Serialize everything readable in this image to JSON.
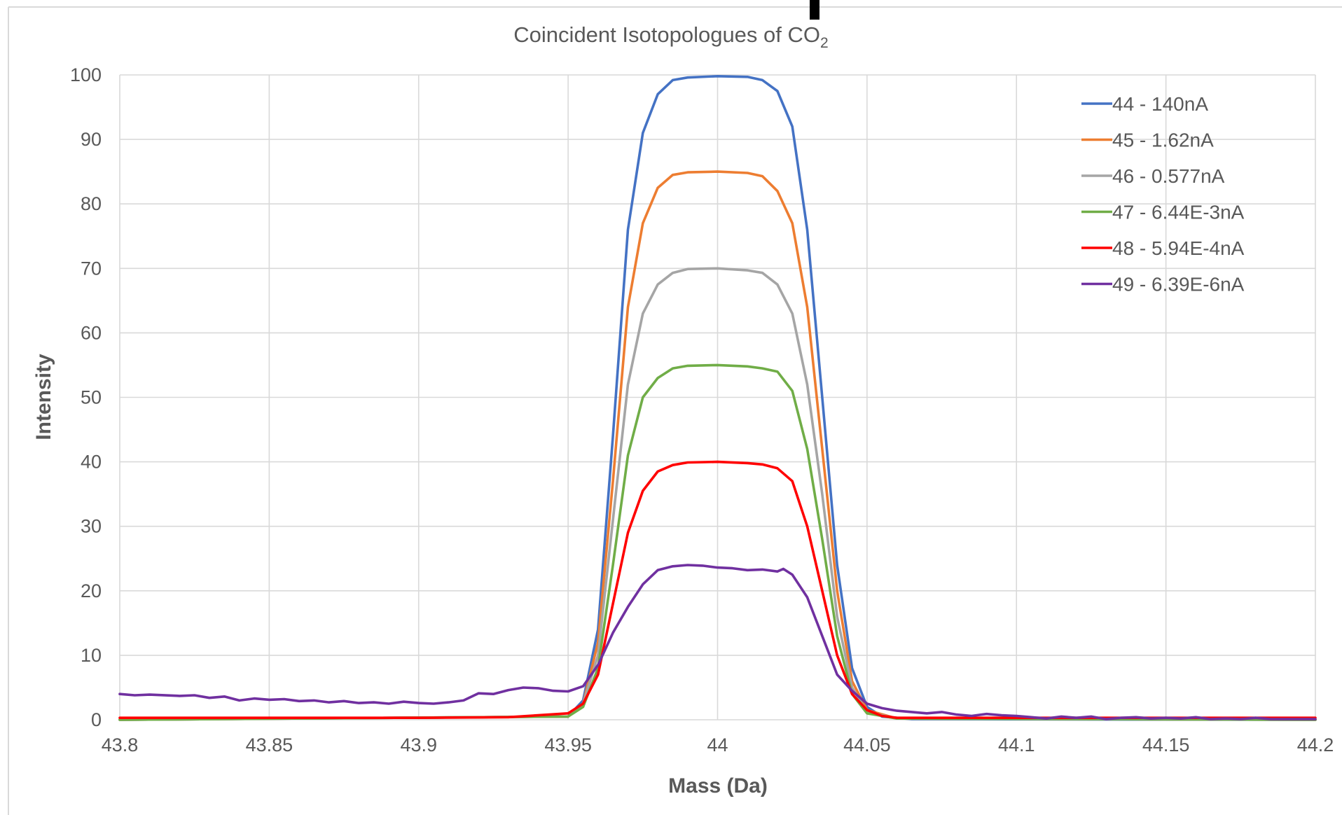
{
  "chart_data": {
    "type": "line",
    "title": "Coincident Isotopologues of CO",
    "title_subscript": "2",
    "xlabel": "Mass (Da)",
    "ylabel": "Intensity",
    "xlim": [
      43.8,
      44.2
    ],
    "ylim": [
      0,
      100
    ],
    "x_ticks": [
      "43.8",
      "43.85",
      "43.9",
      "43.95",
      "44",
      "44.05",
      "44.1",
      "44.15",
      "44.2"
    ],
    "y_ticks": [
      "0",
      "10",
      "20",
      "30",
      "40",
      "50",
      "60",
      "70",
      "80",
      "90",
      "100"
    ],
    "grid": true,
    "legend_position": "top-right",
    "series": [
      {
        "name": "44 - 140nA",
        "color": "#4472C4",
        "points": [
          [
            43.8,
            0
          ],
          [
            43.95,
            0.5
          ],
          [
            43.955,
            3
          ],
          [
            43.96,
            14
          ],
          [
            43.965,
            44
          ],
          [
            43.97,
            76
          ],
          [
            43.975,
            91
          ],
          [
            43.98,
            97
          ],
          [
            43.985,
            99.2
          ],
          [
            43.99,
            99.6
          ],
          [
            44.0,
            99.8
          ],
          [
            44.01,
            99.7
          ],
          [
            44.015,
            99.2
          ],
          [
            44.02,
            97.5
          ],
          [
            44.025,
            92
          ],
          [
            44.03,
            76
          ],
          [
            44.035,
            50
          ],
          [
            44.04,
            24
          ],
          [
            44.045,
            8
          ],
          [
            44.05,
            2
          ],
          [
            44.055,
            0.5
          ],
          [
            44.065,
            0.1
          ],
          [
            44.2,
            0
          ]
        ]
      },
      {
        "name": "45 - 1.62nA",
        "color": "#ED7D31",
        "points": [
          [
            43.8,
            0
          ],
          [
            43.95,
            0.5
          ],
          [
            43.955,
            2.5
          ],
          [
            43.96,
            12
          ],
          [
            43.965,
            37
          ],
          [
            43.97,
            64
          ],
          [
            43.975,
            77
          ],
          [
            43.98,
            82.5
          ],
          [
            43.985,
            84.5
          ],
          [
            43.99,
            84.9
          ],
          [
            44.0,
            85
          ],
          [
            44.01,
            84.8
          ],
          [
            44.015,
            84.3
          ],
          [
            44.02,
            82
          ],
          [
            44.025,
            77
          ],
          [
            44.03,
            64
          ],
          [
            44.035,
            42
          ],
          [
            44.04,
            20
          ],
          [
            44.045,
            6
          ],
          [
            44.05,
            1.5
          ],
          [
            44.06,
            0.2
          ],
          [
            44.2,
            0
          ]
        ]
      },
      {
        "name": "46 - 0.577nA",
        "color": "#A5A5A5",
        "points": [
          [
            43.8,
            0
          ],
          [
            43.95,
            0.5
          ],
          [
            43.955,
            2.5
          ],
          [
            43.96,
            10
          ],
          [
            43.965,
            31
          ],
          [
            43.97,
            52
          ],
          [
            43.975,
            63
          ],
          [
            43.98,
            67.5
          ],
          [
            43.985,
            69.3
          ],
          [
            43.99,
            69.9
          ],
          [
            44.0,
            70
          ],
          [
            44.01,
            69.7
          ],
          [
            44.015,
            69.3
          ],
          [
            44.02,
            67.5
          ],
          [
            44.025,
            63
          ],
          [
            44.03,
            52
          ],
          [
            44.035,
            35
          ],
          [
            44.04,
            16
          ],
          [
            44.045,
            5
          ],
          [
            44.05,
            1.2
          ],
          [
            44.06,
            0.2
          ],
          [
            44.2,
            0
          ]
        ]
      },
      {
        "name": "47 - 6.44E-3nA",
        "color": "#70AD47",
        "points": [
          [
            43.8,
            0
          ],
          [
            43.95,
            0.5
          ],
          [
            43.955,
            2
          ],
          [
            43.96,
            8
          ],
          [
            43.965,
            24
          ],
          [
            43.97,
            41
          ],
          [
            43.975,
            50
          ],
          [
            43.98,
            53
          ],
          [
            43.985,
            54.5
          ],
          [
            43.99,
            54.9
          ],
          [
            44.0,
            55
          ],
          [
            44.01,
            54.8
          ],
          [
            44.015,
            54.5
          ],
          [
            44.02,
            54
          ],
          [
            44.025,
            51
          ],
          [
            44.03,
            42
          ],
          [
            44.035,
            28
          ],
          [
            44.04,
            13
          ],
          [
            44.045,
            4
          ],
          [
            44.05,
            1
          ],
          [
            44.06,
            0.2
          ],
          [
            44.2,
            0
          ]
        ]
      },
      {
        "name": "48 - 5.94E-4nA",
        "color": "#FF0000",
        "points": [
          [
            43.8,
            0.3
          ],
          [
            43.9,
            0.3
          ],
          [
            43.93,
            0.4
          ],
          [
            43.95,
            1
          ],
          [
            43.955,
            2.5
          ],
          [
            43.96,
            7
          ],
          [
            43.965,
            18
          ],
          [
            43.97,
            29
          ],
          [
            43.975,
            35.5
          ],
          [
            43.98,
            38.5
          ],
          [
            43.985,
            39.5
          ],
          [
            43.99,
            39.9
          ],
          [
            44.0,
            40
          ],
          [
            44.01,
            39.8
          ],
          [
            44.015,
            39.6
          ],
          [
            44.02,
            39
          ],
          [
            44.025,
            37
          ],
          [
            44.03,
            30
          ],
          [
            44.035,
            20
          ],
          [
            44.04,
            10
          ],
          [
            44.045,
            4
          ],
          [
            44.05,
            1.5
          ],
          [
            44.055,
            0.6
          ],
          [
            44.06,
            0.3
          ],
          [
            44.2,
            0.3
          ]
        ]
      },
      {
        "name": "49 - 6.39E-6nA",
        "color": "#7030A0",
        "points": [
          [
            43.8,
            4
          ],
          [
            43.805,
            3.8
          ],
          [
            43.81,
            3.9
          ],
          [
            43.82,
            3.7
          ],
          [
            43.825,
            3.8
          ],
          [
            43.83,
            3.4
          ],
          [
            43.835,
            3.6
          ],
          [
            43.84,
            3.0
          ],
          [
            43.845,
            3.3
          ],
          [
            43.85,
            3.1
          ],
          [
            43.855,
            3.2
          ],
          [
            43.86,
            2.9
          ],
          [
            43.865,
            3.0
          ],
          [
            43.87,
            2.7
          ],
          [
            43.875,
            2.9
          ],
          [
            43.88,
            2.6
          ],
          [
            43.885,
            2.7
          ],
          [
            43.89,
            2.5
          ],
          [
            43.895,
            2.8
          ],
          [
            43.9,
            2.6
          ],
          [
            43.905,
            2.5
          ],
          [
            43.91,
            2.7
          ],
          [
            43.915,
            3.0
          ],
          [
            43.92,
            4.1
          ],
          [
            43.925,
            4.0
          ],
          [
            43.93,
            4.6
          ],
          [
            43.935,
            5.0
          ],
          [
            43.94,
            4.9
          ],
          [
            43.945,
            4.5
          ],
          [
            43.95,
            4.4
          ],
          [
            43.955,
            5.2
          ],
          [
            43.96,
            8.5
          ],
          [
            43.965,
            13.5
          ],
          [
            43.97,
            17.5
          ],
          [
            43.975,
            21
          ],
          [
            43.98,
            23.2
          ],
          [
            43.985,
            23.8
          ],
          [
            43.99,
            24.0
          ],
          [
            43.995,
            23.9
          ],
          [
            44.0,
            23.6
          ],
          [
            44.005,
            23.5
          ],
          [
            44.01,
            23.2
          ],
          [
            44.015,
            23.3
          ],
          [
            44.02,
            23.0
          ],
          [
            44.022,
            23.4
          ],
          [
            44.025,
            22.5
          ],
          [
            44.03,
            19
          ],
          [
            44.035,
            13
          ],
          [
            44.04,
            7
          ],
          [
            44.045,
            4.5
          ],
          [
            44.05,
            2.5
          ],
          [
            44.055,
            1.8
          ],
          [
            44.06,
            1.4
          ],
          [
            44.065,
            1.2
          ],
          [
            44.07,
            1.0
          ],
          [
            44.075,
            1.2
          ],
          [
            44.08,
            0.8
          ],
          [
            44.085,
            0.6
          ],
          [
            44.09,
            0.9
          ],
          [
            44.095,
            0.7
          ],
          [
            44.1,
            0.6
          ],
          [
            44.105,
            0.4
          ],
          [
            44.11,
            0.2
          ],
          [
            44.115,
            0.5
          ],
          [
            44.12,
            0.3
          ],
          [
            44.125,
            0.5
          ],
          [
            44.13,
            0.1
          ],
          [
            44.135,
            0.3
          ],
          [
            44.14,
            0.4
          ],
          [
            44.145,
            0.2
          ],
          [
            44.15,
            0.3
          ],
          [
            44.155,
            0.2
          ],
          [
            44.16,
            0.4
          ],
          [
            44.165,
            0.1
          ],
          [
            44.17,
            0.2
          ],
          [
            44.175,
            0.1
          ],
          [
            44.18,
            0.3
          ],
          [
            44.185,
            0.1
          ],
          [
            44.19,
            0.1
          ],
          [
            44.2,
            0.1
          ]
        ]
      }
    ]
  }
}
